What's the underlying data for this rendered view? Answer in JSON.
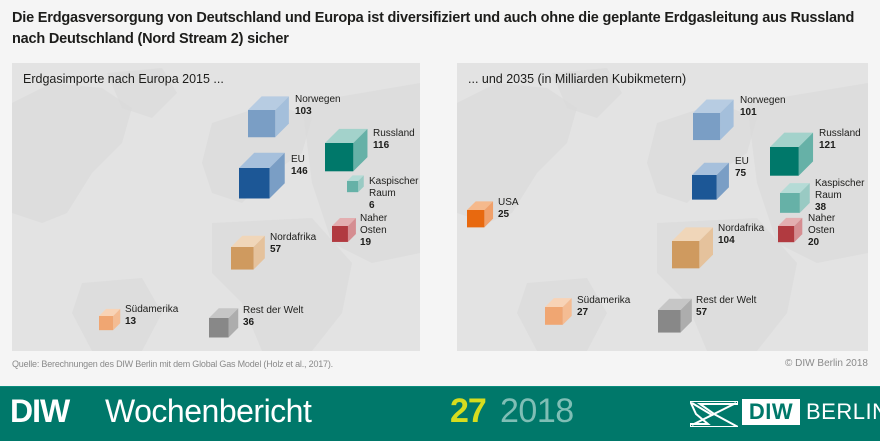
{
  "headline": "Die Erdgasversorgung von Deutschland und Europa ist diversifiziert und auch ohne die geplante Erdgasleitung aus Russland nach Deutschland (Nord Stream 2) sicher",
  "source": "Quelle: Berechnungen des DIW Berlin mit dem Global Gas Model (Holz et al., 2017).",
  "copyright": "© DIW Berlin 2018",
  "footer": {
    "brand_bold": "DIW",
    "brand_title": "Wochenbericht",
    "issue": "27",
    "year": "2018",
    "logo_diw": "DIW",
    "logo_berlin": "BERLIN",
    "color_bg": "#00786a",
    "color_issue": "#d6dc1e",
    "color_year": "#7fbeb5"
  },
  "chart_data": [
    {
      "type": "map-cube",
      "title": "Erdgasimporte nach Europa 2015 ...",
      "unit": "Milliarden Kubikmeter",
      "year": 2015,
      "points": [
        {
          "id": "norwegen",
          "label": [
            "Norwegen"
          ],
          "value": 103,
          "color": "norway"
        },
        {
          "id": "russland",
          "label": [
            "Russland"
          ],
          "value": 116,
          "color": "russia"
        },
        {
          "id": "eu",
          "label": [
            "EU"
          ],
          "value": 146,
          "color": "eu"
        },
        {
          "id": "kaspischer-raum",
          "label": [
            "Kaspischer",
            "Raum"
          ],
          "value": 6,
          "color": "caspian"
        },
        {
          "id": "naher-osten",
          "label": [
            "Naher",
            "Osten"
          ],
          "value": 19,
          "color": "middleeast"
        },
        {
          "id": "nordafrika",
          "label": [
            "Nordafrika"
          ],
          "value": 57,
          "color": "northafrica"
        },
        {
          "id": "suedamerika",
          "label": [
            "Südamerika"
          ],
          "value": 13,
          "color": "southamerica"
        },
        {
          "id": "rest-der-welt",
          "label": [
            "Rest der Welt"
          ],
          "value": 36,
          "color": "rest"
        }
      ]
    },
    {
      "type": "map-cube",
      "title": "... und 2035 (in Milliarden Kubikmetern)",
      "unit": "Milliarden Kubikmeter",
      "year": 2035,
      "points": [
        {
          "id": "norwegen",
          "label": [
            "Norwegen"
          ],
          "value": 101,
          "color": "norway"
        },
        {
          "id": "russland",
          "label": [
            "Russland"
          ],
          "value": 121,
          "color": "russia"
        },
        {
          "id": "eu",
          "label": [
            "EU"
          ],
          "value": 75,
          "color": "eu"
        },
        {
          "id": "kaspischer-raum",
          "label": [
            "Kaspischer",
            "Raum"
          ],
          "value": 38,
          "color": "caspian"
        },
        {
          "id": "naher-osten",
          "label": [
            "Naher",
            "Osten"
          ],
          "value": 20,
          "color": "middleeast"
        },
        {
          "id": "usa",
          "label": [
            "USA"
          ],
          "value": 25,
          "color": "usa"
        },
        {
          "id": "nordafrika",
          "label": [
            "Nordafrika"
          ],
          "value": 104,
          "color": "northafrica"
        },
        {
          "id": "suedamerika",
          "label": [
            "Südamerika"
          ],
          "value": 27,
          "color": "southamerica"
        },
        {
          "id": "rest-der-welt",
          "label": [
            "Rest der Welt"
          ],
          "value": 57,
          "color": "rest"
        }
      ]
    }
  ],
  "colors": {
    "norway": {
      "front": "#7a9ec5",
      "top": "#b7cce2",
      "side": "#a4bfdb"
    },
    "eu": {
      "front": "#1c5796",
      "top": "#a6c0dc",
      "side": "#7a9ec5"
    },
    "russia": {
      "front": "#00786a",
      "top": "#a3d2cb",
      "side": "#66b1a7"
    },
    "caspian": {
      "front": "#66b1a7",
      "top": "#b5dbd6",
      "side": "#99cac3"
    },
    "middleeast": {
      "front": "#b13a40",
      "top": "#e3aeb0",
      "side": "#d58d91"
    },
    "northafrica": {
      "front": "#cf9a5f",
      "top": "#f0d6b9",
      "side": "#e5c29c"
    },
    "southamerica": {
      "front": "#f0a672",
      "top": "#f8d3b6",
      "side": "#f4bc93"
    },
    "usa": {
      "front": "#e8690f",
      "top": "#f5b98c",
      "side": "#f0a06a"
    },
    "rest": {
      "front": "#888888",
      "top": "#c6c6c6",
      "side": "#adadad"
    }
  }
}
